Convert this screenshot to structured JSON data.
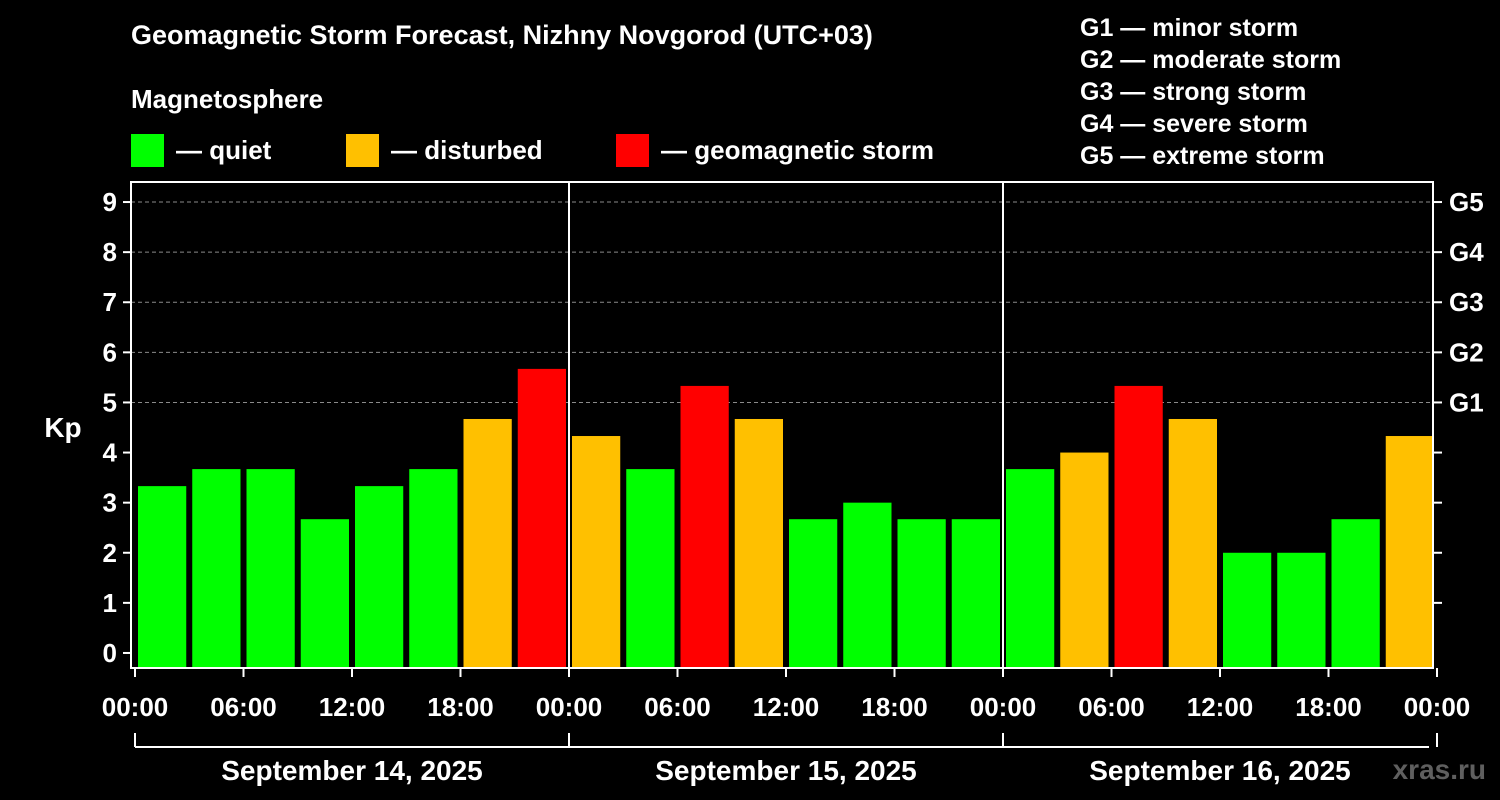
{
  "title": "Geomagnetic Storm Forecast, Nizhny Novgorod (UTC+03)",
  "legend": {
    "heading": "Magnetosphere",
    "items": [
      {
        "label": "— quiet",
        "color": "#00ff00"
      },
      {
        "label": "— disturbed",
        "color": "#ffc000"
      },
      {
        "label": "— geomagnetic storm",
        "color": "#ff0000"
      }
    ]
  },
  "g_scale_legend": [
    "G1 — minor storm",
    "G2 — moderate storm",
    "G3 — strong storm",
    "G4 — severe storm",
    "G5 — extreme storm"
  ],
  "watermark": "xras.ru",
  "chart_data": {
    "type": "bar",
    "title": "Geomagnetic Storm Forecast, Nizhny Novgorod (UTC+03)",
    "ylabel": "Kp",
    "xlabel": "",
    "ylim": [
      -0.3,
      9.4
    ],
    "yticks": [
      "0",
      "1",
      "2",
      "3",
      "4",
      "5",
      "6",
      "7",
      "8",
      "9"
    ],
    "right_ticks": [
      {
        "kp": 5,
        "label": "G1"
      },
      {
        "kp": 6,
        "label": "G2"
      },
      {
        "kp": 7,
        "label": "G3"
      },
      {
        "kp": 8,
        "label": "G4"
      },
      {
        "kp": 9,
        "label": "G5"
      }
    ],
    "xtick_labels": [
      "00:00",
      "06:00",
      "12:00",
      "18:00",
      "00:00",
      "06:00",
      "12:00",
      "18:00",
      "00:00",
      "06:00",
      "12:00",
      "18:00",
      "00:00"
    ],
    "days": [
      "September 14, 2025",
      "September 15, 2025",
      "September 16, 2025"
    ],
    "bar_hours": 3,
    "colors": {
      "quiet": "#00ff00",
      "disturbed": "#ffc000",
      "storm": "#ff0000"
    },
    "values": [
      3.33,
      3.67,
      3.67,
      2.67,
      3.33,
      3.67,
      4.67,
      5.67,
      4.33,
      3.67,
      5.33,
      4.67,
      2.67,
      3.0,
      2.67,
      2.67,
      3.67,
      4.0,
      5.33,
      4.67,
      2.0,
      2.0,
      2.67,
      4.33
    ],
    "levels": [
      "quiet",
      "quiet",
      "quiet",
      "quiet",
      "quiet",
      "quiet",
      "disturbed",
      "storm",
      "disturbed",
      "quiet",
      "storm",
      "disturbed",
      "quiet",
      "quiet",
      "quiet",
      "quiet",
      "quiet",
      "disturbed",
      "storm",
      "disturbed",
      "quiet",
      "quiet",
      "quiet",
      "disturbed"
    ]
  }
}
